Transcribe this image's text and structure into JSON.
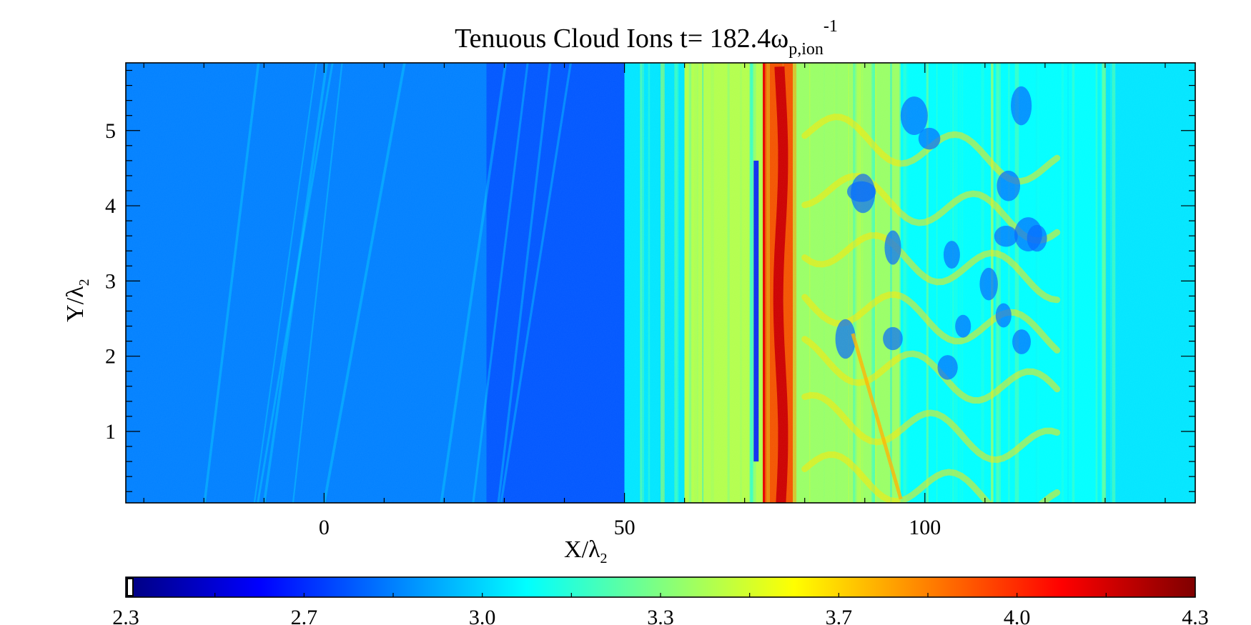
{
  "chart_data": {
    "type": "heatmap",
    "title": {
      "prefix": "Tenuous Cloud Ions t= 182.4ω",
      "subscript": "p,ion",
      "superscript": "-1"
    },
    "xlabel": {
      "main": "X/λ",
      "subscript": "2"
    },
    "ylabel": {
      "main": "Y/λ",
      "subscript": "2"
    },
    "xlim": [
      -33,
      145
    ],
    "ylim": [
      0.05,
      5.9
    ],
    "x_ticks": [
      0,
      50,
      100
    ],
    "y_ticks": [
      1,
      2,
      3,
      4,
      5
    ],
    "colormap": "jet",
    "colorbar": {
      "range": [
        2.3,
        4.3
      ],
      "tick_labels": [
        "2.3",
        "2.7",
        "3.0",
        "3.3",
        "3.7",
        "4.0",
        "4.3"
      ],
      "colors": [
        "#00007f",
        "#0000ff",
        "#0080ff",
        "#00ffff",
        "#80ff80",
        "#ffff00",
        "#ff8000",
        "#ff0000",
        "#7f0000"
      ]
    },
    "regions": [
      {
        "x0": -33,
        "x1": 27,
        "level": 2.8
      },
      {
        "x0": 27,
        "x1": 50,
        "level": 2.72
      },
      {
        "x0": 50,
        "x1": 60,
        "level": 3.0
      },
      {
        "x0": 60,
        "x1": 73,
        "level": 3.4
      },
      {
        "x0": 73,
        "x1": 78,
        "level": 4.1
      },
      {
        "x0": 78,
        "x1": 96,
        "level": 3.35
      },
      {
        "x0": 96,
        "x1": 130,
        "level": 3.05
      },
      {
        "x0": 130,
        "x1": 145,
        "level": 3.0
      }
    ],
    "peak": {
      "x": 76,
      "level": 4.15
    }
  }
}
